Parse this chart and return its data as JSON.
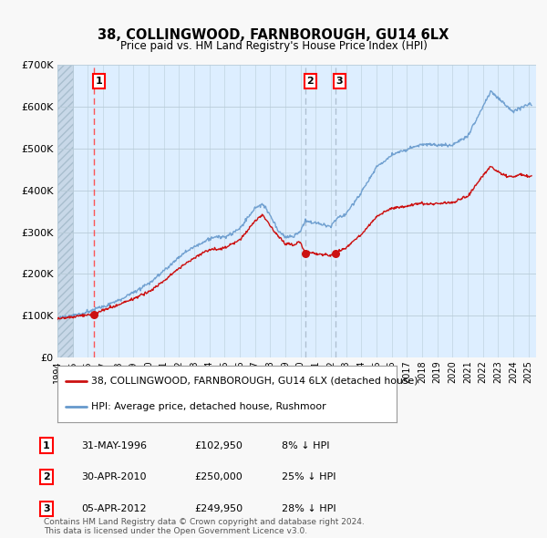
{
  "title": "38, COLLINGWOOD, FARNBOROUGH, GU14 6LX",
  "subtitle": "Price paid vs. HM Land Registry's House Price Index (HPI)",
  "property_label": "38, COLLINGWOOD, FARNBOROUGH, GU14 6LX (detached house)",
  "hpi_label": "HPI: Average price, detached house, Rushmoor",
  "transaction_years": [
    1996.42,
    2010.33,
    2012.27
  ],
  "transaction_prices": [
    102950,
    250000,
    249950
  ],
  "vline_colors": [
    "#ff4444",
    "#aabbcc",
    "#aabbcc"
  ],
  "footer": "Contains HM Land Registry data © Crown copyright and database right 2024.\nThis data is licensed under the Open Government Licence v3.0.",
  "ylim": [
    0,
    700000
  ],
  "xlim_start": 1994.0,
  "xlim_end": 2025.5,
  "hatch_end": 1995.0,
  "plot_bg": "#ddeeff",
  "hatch_color": "#c8d8e8",
  "red_line_color": "#cc1111",
  "blue_line_color": "#6699cc",
  "grid_color": "#b8ccd8",
  "row_data": [
    [
      1,
      "31-MAY-1996",
      "£102,950",
      "8% ↓ HPI"
    ],
    [
      2,
      "30-APR-2010",
      "£250,000",
      "25% ↓ HPI"
    ],
    [
      3,
      "05-APR-2012",
      "£249,950",
      "28% ↓ HPI"
    ]
  ]
}
